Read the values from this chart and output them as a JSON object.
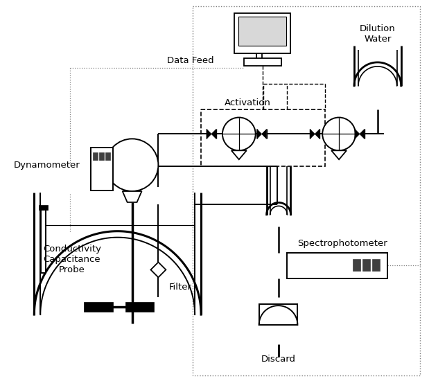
{
  "bg_color": "#ffffff",
  "labels": {
    "dynamometer": "Dynamometer",
    "data_feed": "Data Feed",
    "dilution_water": "Dilution\nWater",
    "activation": "Activation",
    "conductivity": "Conductivity\nCapacitance\nProbe",
    "filter": "Filter",
    "spectrophotometer": "Spectrophotometer",
    "discard": "Discard"
  }
}
